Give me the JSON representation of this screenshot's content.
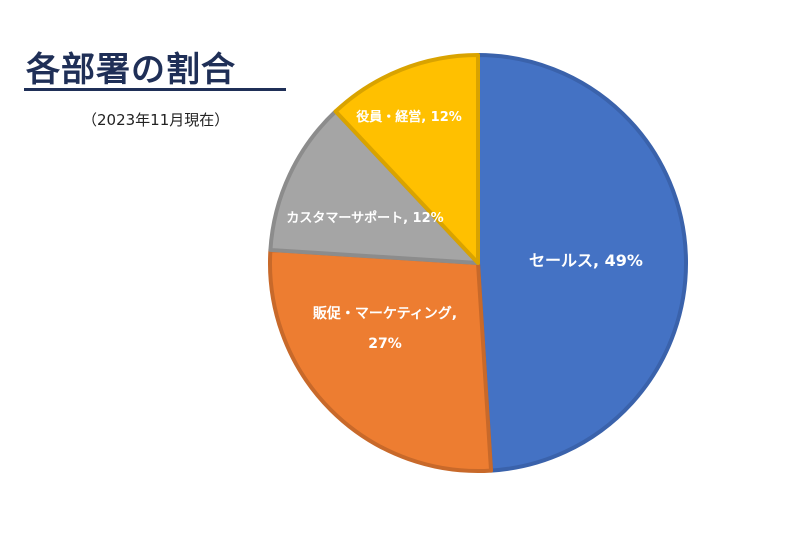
{
  "chart_data": {
    "type": "pie",
    "title": "各部署の割合",
    "subtitle": "（2023年11月現在）",
    "slices": [
      {
        "name": "セールス",
        "value": 49,
        "label": "セールス, 49%",
        "color": "#4472C4",
        "border": "#3a62ab"
      },
      {
        "name": "販促・マーケティング",
        "value": 27,
        "label_lines": [
          "販促・マーケティング,",
          "27%"
        ],
        "color": "#ED7D31",
        "border": "#c8692a"
      },
      {
        "name": "カスタマーサポート",
        "value": 12,
        "label": "カスタマーサポート, 12%",
        "color": "#A5A5A5",
        "border": "#8c8c8c"
      },
      {
        "name": "役員・経営",
        "value": 12,
        "label": "役員・経営, 12%",
        "color": "#FFC000",
        "border": "#d9a300"
      }
    ]
  }
}
